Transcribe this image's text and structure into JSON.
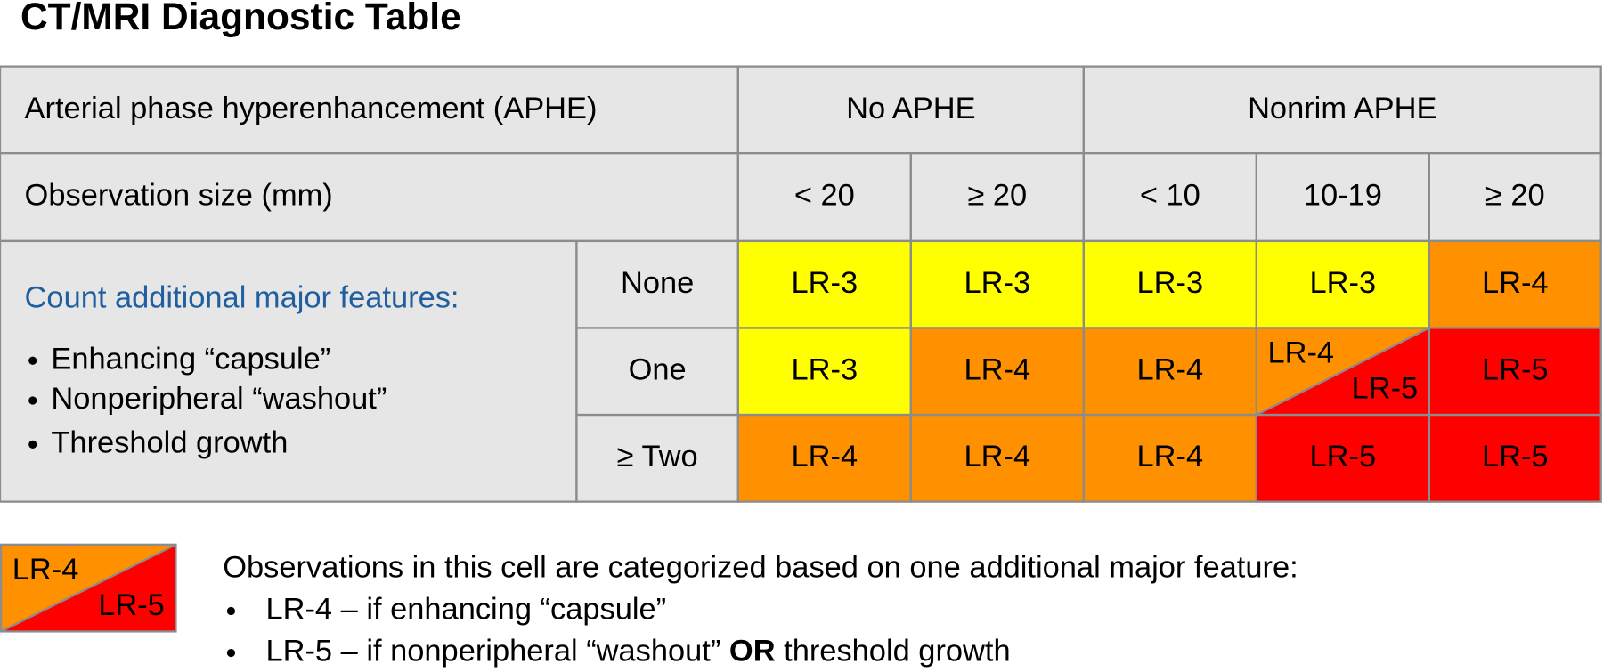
{
  "title": "CT/MRI Diagnostic Table",
  "table": {
    "header_rows": [
      [
        "Arterial phase hyperenhancement (APHE)",
        "No APHE",
        "Nonrim APHE"
      ],
      [
        "Observation size (mm)",
        "< 20",
        "≥ 20",
        "< 10",
        "10-19",
        "≥ 20"
      ]
    ],
    "features": {
      "heading": "Count additional major features:",
      "items": [
        "Enhancing “capsule”",
        "Nonperipheral “washout”",
        "Threshold growth"
      ]
    },
    "rows": [
      {
        "label": "None",
        "cells": [
          "LR-3",
          "LR-3",
          "LR-3",
          "LR-3",
          "LR-4"
        ]
      },
      {
        "label": "One",
        "cells": [
          "LR-3",
          "LR-4",
          "LR-4",
          {
            "top": "LR-4",
            "bottom": "LR-5"
          },
          "LR-5"
        ]
      },
      {
        "label": "≥ Two",
        "cells": [
          "LR-4",
          "LR-4",
          "LR-4",
          "LR-5",
          "LR-5"
        ]
      }
    ],
    "colors": {
      "LR-3": "#ffff00",
      "LR-4": "#ff9000",
      "LR-5": "#ff0000"
    }
  },
  "legend": {
    "cell": {
      "top": "LR-4",
      "bottom": "LR-5"
    },
    "description": "Observations in this cell are categorized based on one additional major feature:",
    "items": [
      [
        "LR-4 – if enhancing “capsule”"
      ],
      [
        "LR-5 – if nonperipheral “washout”",
        "OR",
        "threshold growth"
      ]
    ]
  }
}
